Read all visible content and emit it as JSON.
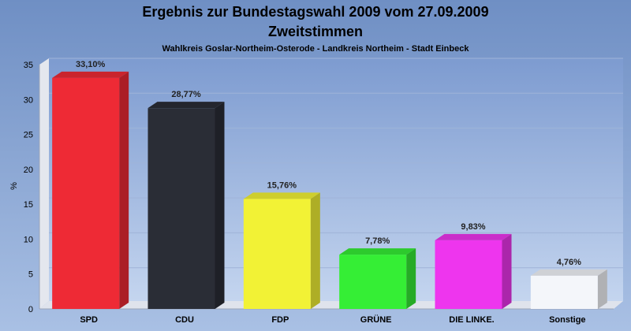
{
  "chart_data": {
    "type": "bar",
    "title": "Ergebnis zur Bundestagswahl 2009 vom 27.09.2009",
    "title2": "Zweitstimmen",
    "subtitle": "Wahlkreis Goslar-Northeim-Osterode - Landkreis Northeim - Stadt Einbeck",
    "xlabel": "",
    "ylabel": "%",
    "ylim": [
      0,
      35
    ],
    "yticks": [
      0,
      5,
      10,
      15,
      20,
      25,
      30,
      35
    ],
    "grid": true,
    "categories": [
      "SPD",
      "CDU",
      "FDP",
      "GRÜNE",
      "DIE LINKE.",
      "Sonstige"
    ],
    "values": [
      33.1,
      28.77,
      15.76,
      7.78,
      9.83,
      4.76
    ],
    "labels": [
      "33,10%",
      "28,77%",
      "15,76%",
      "7,78%",
      "9,83%",
      "4,76%"
    ],
    "colors": [
      "#ee2a35",
      "#2a2d36",
      "#f2f235",
      "#35ee35",
      "#ee35ee",
      "#f4f6fa"
    ]
  }
}
